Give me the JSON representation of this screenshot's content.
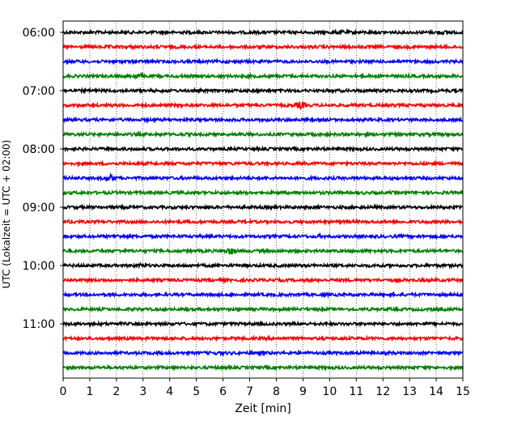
{
  "chart_data": {
    "type": "line",
    "title": "",
    "xlabel": "Zeit  [min]",
    "ylabel": "UTC (Lokalzeit = UTC + 02:00)",
    "xlim": [
      0,
      15
    ],
    "x_ticks": [
      0,
      1,
      2,
      3,
      4,
      5,
      6,
      7,
      8,
      9,
      10,
      11,
      12,
      13,
      14,
      15
    ],
    "y_ticks": [
      {
        "label": "06:00",
        "trace": 0
      },
      {
        "label": "07:00",
        "trace": 4
      },
      {
        "label": "08:00",
        "trace": 8
      },
      {
        "label": "09:00",
        "trace": 12
      },
      {
        "label": "10:00",
        "trace": 16
      },
      {
        "label": "11:00",
        "trace": 20
      }
    ],
    "grid": "vertical dotted",
    "legend": "none",
    "trace_minutes": 15,
    "colors": [
      "#000000",
      "#ff0000",
      "#0000ff",
      "#008000"
    ],
    "series": [
      {
        "start": "06:00",
        "color": "#000000",
        "events": [
          {
            "t": 10.4,
            "amp": 1.6
          },
          {
            "t": 14.2,
            "amp": 1.5
          }
        ]
      },
      {
        "start": "06:15",
        "color": "#ff0000",
        "events": [
          {
            "t": 1.8,
            "amp": 1.2
          },
          {
            "t": 2.6,
            "amp": 1.2
          }
        ]
      },
      {
        "start": "06:30",
        "color": "#0000ff",
        "events": [
          {
            "t": 9.9,
            "amp": 1.1
          }
        ]
      },
      {
        "start": "06:45",
        "color": "#008000",
        "events": [
          {
            "t": 2.8,
            "amp": 2.0
          }
        ]
      },
      {
        "start": "07:00",
        "color": "#000000",
        "events": [
          {
            "t": 13.0,
            "amp": 1.0
          }
        ]
      },
      {
        "start": "07:15",
        "color": "#ff0000",
        "events": [
          {
            "t": 8.9,
            "amp": 2.6
          }
        ]
      },
      {
        "start": "07:30",
        "color": "#0000ff",
        "events": [
          {
            "t": 6.3,
            "amp": 1.0
          }
        ]
      },
      {
        "start": "07:45",
        "color": "#008000",
        "events": [
          {
            "t": 2.5,
            "amp": 1.1
          },
          {
            "t": 11.2,
            "amp": 1.1
          }
        ]
      },
      {
        "start": "08:00",
        "color": "#000000",
        "events": []
      },
      {
        "start": "08:15",
        "color": "#ff0000",
        "events": [
          {
            "t": 14.0,
            "amp": 1.0
          }
        ]
      },
      {
        "start": "08:30",
        "color": "#0000ff",
        "events": [
          {
            "t": 1.8,
            "amp": 2.4
          }
        ]
      },
      {
        "start": "08:45",
        "color": "#008000",
        "events": [
          {
            "t": 10.2,
            "amp": 1.3
          }
        ]
      },
      {
        "start": "09:00",
        "color": "#000000",
        "events": [
          {
            "t": 3.5,
            "amp": 1.0
          }
        ]
      },
      {
        "start": "09:15",
        "color": "#ff0000",
        "events": [
          {
            "t": 0.3,
            "amp": 1.4
          },
          {
            "t": 8.8,
            "amp": 1.0
          }
        ]
      },
      {
        "start": "09:30",
        "color": "#0000ff",
        "events": [
          {
            "t": 2.1,
            "amp": 1.3
          },
          {
            "t": 9.6,
            "amp": 1.3
          }
        ]
      },
      {
        "start": "09:45",
        "color": "#008000",
        "events": [
          {
            "t": 2.0,
            "amp": 1.2
          },
          {
            "t": 6.3,
            "amp": 2.6
          },
          {
            "t": 11.4,
            "amp": 1.1
          }
        ]
      },
      {
        "start": "10:00",
        "color": "#000000",
        "events": [
          {
            "t": 2.9,
            "amp": 1.6
          },
          {
            "t": 11.0,
            "amp": 1.0
          }
        ]
      },
      {
        "start": "10:15",
        "color": "#ff0000",
        "events": [
          {
            "t": 4.0,
            "amp": 1.0
          }
        ]
      },
      {
        "start": "10:30",
        "color": "#0000ff",
        "events": [
          {
            "t": 10.0,
            "amp": 1.1
          },
          {
            "t": 13.9,
            "amp": 1.2
          }
        ]
      },
      {
        "start": "10:45",
        "color": "#008000",
        "events": [
          {
            "t": 6.6,
            "amp": 1.3
          },
          {
            "t": 14.0,
            "amp": 1.3
          }
        ]
      },
      {
        "start": "11:00",
        "color": "#000000",
        "events": [
          {
            "t": 9.2,
            "amp": 1.0
          }
        ]
      },
      {
        "start": "11:15",
        "color": "#ff0000",
        "events": [
          {
            "t": 12.8,
            "amp": 1.0
          }
        ]
      },
      {
        "start": "11:30",
        "color": "#0000ff",
        "events": [
          {
            "t": 5.8,
            "amp": 1.2
          },
          {
            "t": 12.2,
            "amp": 1.2
          }
        ]
      },
      {
        "start": "11:45",
        "color": "#008000",
        "events": [
          {
            "t": 4.1,
            "amp": 1.0
          }
        ]
      }
    ]
  }
}
